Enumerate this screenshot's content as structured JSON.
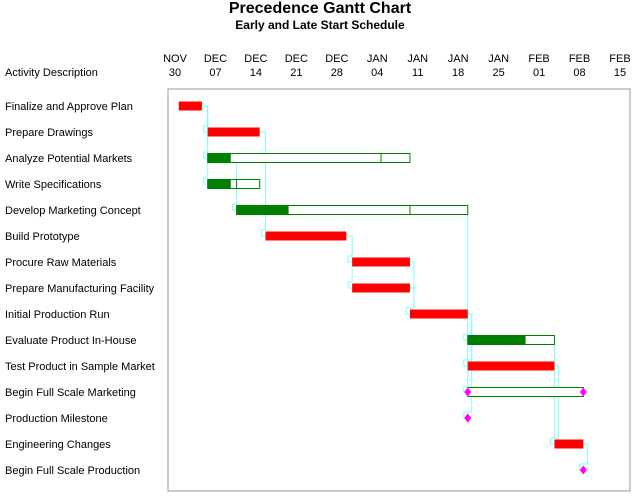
{
  "title": "Precedence Gantt Chart",
  "subtitle": "Early and Late Start Schedule",
  "column_header": "Activity Description",
  "colors": {
    "critical": "#ff0000",
    "noncritical_early": "#008000",
    "slack": "#ffffff",
    "slack_border": "#008000",
    "milestone": "#ff00ff",
    "link": "#80ffff",
    "frame": "#999999"
  },
  "chart_data": {
    "type": "gantt",
    "x_axis": {
      "unit": "date",
      "min": "1993-11-30",
      "max": "1994-02-15",
      "ticks": [
        {
          "date": "1993-11-30",
          "month": "NOV",
          "day": "30"
        },
        {
          "date": "1993-12-07",
          "month": "DEC",
          "day": "07"
        },
        {
          "date": "1993-12-14",
          "month": "DEC",
          "day": "14"
        },
        {
          "date": "1993-12-21",
          "month": "DEC",
          "day": "21"
        },
        {
          "date": "1993-12-28",
          "month": "DEC",
          "day": "28"
        },
        {
          "date": "1994-01-04",
          "month": "JAN",
          "day": "04"
        },
        {
          "date": "1994-01-11",
          "month": "JAN",
          "day": "11"
        },
        {
          "date": "1994-01-18",
          "month": "JAN",
          "day": "18"
        },
        {
          "date": "1994-01-25",
          "month": "JAN",
          "day": "25"
        },
        {
          "date": "1994-02-01",
          "month": "FEB",
          "day": "01"
        },
        {
          "date": "1994-02-08",
          "month": "FEB",
          "day": "08"
        },
        {
          "date": "1994-02-15",
          "month": "FEB",
          "day": "15"
        }
      ]
    },
    "activities": [
      {
        "name": "Finalize and Approve Plan",
        "early_start": "1993-12-01",
        "early_finish": "1993-12-05",
        "late_start": "1993-12-01",
        "late_finish": "1993-12-05",
        "critical": true
      },
      {
        "name": "Prepare Drawings",
        "early_start": "1993-12-06",
        "early_finish": "1993-12-15",
        "late_start": "1993-12-06",
        "late_finish": "1993-12-15",
        "critical": true
      },
      {
        "name": "Analyze Potential Markets",
        "early_start": "1993-12-06",
        "early_finish": "1993-12-10",
        "late_start": "1994-01-05",
        "late_finish": "1994-01-10",
        "critical": false
      },
      {
        "name": "Write Specifications",
        "early_start": "1993-12-06",
        "early_finish": "1993-12-10",
        "late_start": "1993-12-11",
        "late_finish": "1993-12-15",
        "critical": false
      },
      {
        "name": "Develop Marketing Concept",
        "early_start": "1993-12-11",
        "early_finish": "1993-12-20",
        "late_start": "1994-01-10",
        "late_finish": "1994-01-20",
        "critical": false
      },
      {
        "name": "Build Prototype",
        "early_start": "1993-12-16",
        "early_finish": "1993-12-30",
        "late_start": "1993-12-16",
        "late_finish": "1993-12-30",
        "critical": true
      },
      {
        "name": "Procure Raw Materials",
        "early_start": "1993-12-31",
        "early_finish": "1994-01-10",
        "late_start": "1993-12-31",
        "late_finish": "1994-01-10",
        "critical": true
      },
      {
        "name": "Prepare Manufacturing Facility",
        "early_start": "1993-12-31",
        "early_finish": "1994-01-10",
        "late_start": "1993-12-31",
        "late_finish": "1994-01-10",
        "critical": true
      },
      {
        "name": "Initial Production Run",
        "early_start": "1994-01-10",
        "early_finish": "1994-01-20",
        "late_start": "1994-01-10",
        "late_finish": "1994-01-20",
        "critical": true
      },
      {
        "name": "Evaluate Product In-House",
        "early_start": "1994-01-20",
        "early_finish": "1994-01-30",
        "late_start": "1994-01-25",
        "late_finish": "1994-02-04",
        "critical": false
      },
      {
        "name": "Test Product in Sample Market",
        "early_start": "1994-01-20",
        "early_finish": "1994-02-04",
        "late_start": "1994-01-20",
        "late_finish": "1994-02-04",
        "critical": true
      },
      {
        "name": "Begin Full Scale Marketing",
        "early_start": "1994-01-20",
        "early_finish": "1994-01-20",
        "late_start": "1994-02-09",
        "late_finish": "1994-02-09",
        "critical": false,
        "milestone": true
      },
      {
        "name": "Production Milestone",
        "early_start": "1994-01-20",
        "early_finish": "1994-01-20",
        "late_start": "1994-01-20",
        "late_finish": "1994-01-20",
        "critical": true,
        "milestone": true
      },
      {
        "name": "Engineering Changes",
        "early_start": "1994-02-04",
        "early_finish": "1994-02-09",
        "late_start": "1994-02-04",
        "late_finish": "1994-02-09",
        "critical": true
      },
      {
        "name": "Begin Full Scale Production",
        "early_start": "1994-02-09",
        "early_finish": "1994-02-09",
        "late_start": "1994-02-09",
        "late_finish": "1994-02-09",
        "critical": true,
        "milestone": true
      }
    ],
    "links": [
      {
        "from": 0,
        "to": 1
      },
      {
        "from": 0,
        "to": 2
      },
      {
        "from": 0,
        "to": 3
      },
      {
        "from": 1,
        "to": 5
      },
      {
        "from": 2,
        "to": 4
      },
      {
        "from": 3,
        "to": 4
      },
      {
        "from": 5,
        "to": 6
      },
      {
        "from": 5,
        "to": 7
      },
      {
        "from": 6,
        "to": 8
      },
      {
        "from": 7,
        "to": 8
      },
      {
        "from": 8,
        "to": 9
      },
      {
        "from": 8,
        "to": 10
      },
      {
        "from": 4,
        "to": 11
      },
      {
        "from": 8,
        "to": 12
      },
      {
        "from": 9,
        "to": 13
      },
      {
        "from": 10,
        "to": 13
      },
      {
        "from": 13,
        "to": 14
      }
    ]
  }
}
